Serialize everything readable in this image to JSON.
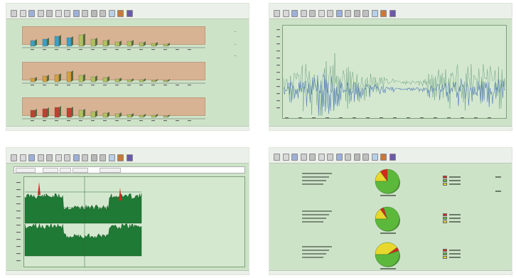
{
  "colors": {
    "panel_bg": "#cde3c8",
    "chart_band": "#d7b394",
    "dark_green": "#1e7a34",
    "pie_green": "#5cb83a",
    "pie_yellow": "#e8d82c",
    "pie_red": "#d42a1e",
    "line_blue": "#4f79b8",
    "line_green": "#6aa082"
  },
  "toolbar": {
    "icons": [
      "new-icon",
      "open-icon",
      "save-icon",
      "print-icon",
      "cut-icon",
      "copy-icon",
      "paste-icon",
      "zoom-icon",
      "chart-icon",
      "table-icon",
      "settings-icon",
      "help-icon",
      "color-icon",
      "export-icon"
    ]
  },
  "panel1": {
    "group_labels": [
      "",
      "",
      ""
    ]
  },
  "panel2": {},
  "panel3": {},
  "panel4": {
    "pies": [
      {
        "green": 0.75,
        "yellow": 0.15,
        "red": 0.1
      },
      {
        "green": 0.8,
        "yellow": 0.15,
        "red": 0.05
      },
      {
        "green": 0.55,
        "yellow": 0.4,
        "red": 0.05
      }
    ]
  }
}
